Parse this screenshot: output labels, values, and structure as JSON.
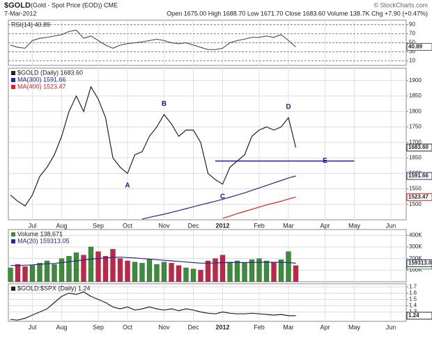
{
  "header": {
    "symbol": "$GOLD",
    "name": "(Gold - Spot Price (EOD)) CME",
    "date": "7-Mar-2012",
    "quote": "Open 1675.00 High 1688.70 Low 1671.70 Close 1683.60 Volume 138.7K Chg +7.90 (+0.47%)",
    "credit": "© StockCharts.com"
  },
  "chart_data": [
    {
      "type": "line",
      "title": "RSI(14) 40.89",
      "ylim": [
        0,
        100
      ],
      "yticks": [
        10,
        30,
        50,
        70,
        90
      ],
      "grid": true,
      "series": [
        {
          "color": "#555555",
          "values": [
            45,
            40,
            38,
            55,
            60,
            62,
            65,
            68,
            75,
            78,
            60,
            65,
            55,
            45,
            38,
            45,
            48,
            50,
            52,
            55,
            58,
            55,
            50,
            48,
            50,
            45,
            40,
            35,
            35,
            38,
            50,
            55,
            58,
            62,
            62,
            65,
            62,
            68,
            55,
            40.89
          ]
        }
      ]
    },
    {
      "type": "line",
      "ylim": [
        1450,
        1940
      ],
      "yticks": [
        1500,
        1550,
        1600,
        1650,
        1700,
        1750,
        1800,
        1850,
        1900
      ],
      "grid": true,
      "categories": [
        null,
        null,
        null,
        "Jul",
        null,
        null,
        null,
        "Aug",
        null,
        null,
        null,
        null,
        "Sep",
        null,
        null,
        null,
        "Oct",
        null,
        null,
        null,
        null,
        "Nov",
        null,
        null,
        null,
        "Dec",
        null,
        null,
        null,
        "2012",
        null,
        null,
        null,
        null,
        "Feb",
        null,
        null,
        null,
        "Mar",
        null,
        null,
        null,
        null,
        "Apr",
        null,
        null,
        null,
        "May",
        null,
        null,
        null,
        null,
        "Jun"
      ],
      "series": [
        {
          "name": "$GOLD (Daily) 1683.60",
          "color": "#222222",
          "values": [
            1530,
            1510,
            1495,
            1530,
            1590,
            1620,
            1660,
            1720,
            1800,
            1850,
            1800,
            1880,
            1840,
            1780,
            1650,
            1620,
            1600,
            1660,
            1670,
            1720,
            1750,
            1790,
            1760,
            1720,
            1740,
            1740,
            1700,
            1600,
            1580,
            1565,
            1620,
            1640,
            1660,
            1720,
            1740,
            1750,
            1740,
            1750,
            1780,
            1683.6,
            null,
            null,
            null,
            null,
            null,
            null,
            null,
            null,
            null,
            null,
            null,
            null,
            null
          ],
          "value_labels": [
            null,
            null,
            null,
            null,
            null,
            null,
            null,
            null,
            null,
            null,
            null,
            null,
            null,
            null,
            null,
            null,
            null,
            null,
            null,
            null,
            null,
            null,
            null,
            null,
            null,
            null,
            null,
            null,
            null,
            null,
            null,
            null,
            null,
            null,
            null,
            null,
            null,
            null,
            null,
            "1683.60",
            null,
            null,
            null,
            null,
            null,
            null,
            null,
            null,
            null,
            null,
            null,
            null,
            null
          ]
        },
        {
          "name": "MA(300) 1591.66",
          "color": "#1f2a8a",
          "values": [
            null,
            null,
            null,
            null,
            null,
            null,
            null,
            null,
            null,
            null,
            null,
            null,
            null,
            null,
            null,
            null,
            null,
            null,
            1452,
            1458,
            1463,
            1468,
            1474,
            1480,
            1486,
            1492,
            1498,
            1504,
            1510,
            1516,
            1523,
            1530,
            1537,
            1545,
            1553,
            1561,
            1569,
            1577,
            1585,
            1591.66,
            null,
            null,
            null,
            null,
            null,
            null,
            null,
            null,
            null,
            null,
            null,
            null,
            null
          ]
        },
        {
          "name": "MA(400) 1523.47",
          "color": "#e02020",
          "values": [
            null,
            null,
            null,
            null,
            null,
            null,
            null,
            null,
            null,
            null,
            null,
            null,
            null,
            null,
            null,
            null,
            null,
            null,
            null,
            null,
            null,
            null,
            null,
            null,
            null,
            null,
            null,
            null,
            null,
            1455,
            1462,
            1470,
            1477,
            1484,
            1491,
            1498,
            1504,
            1510,
            1517,
            1523.47,
            null,
            null,
            null,
            null,
            null,
            null,
            null,
            null,
            null,
            null,
            null,
            null,
            null
          ]
        }
      ],
      "hlines": [
        {
          "y": 1640,
          "x": [
            28,
            47
          ],
          "color": "#1a1aa8"
        }
      ],
      "annotations": [
        {
          "text": "A",
          "x": 16,
          "y": 1560
        },
        {
          "text": "B",
          "x": 21,
          "y": 1825
        },
        {
          "text": "C",
          "x": 29,
          "y": 1525
        },
        {
          "text": "D",
          "x": 38,
          "y": 1815
        },
        {
          "text": "E",
          "x": 43,
          "y": 1640
        }
      ]
    },
    {
      "type": "bar",
      "ylim": [
        0,
        450000
      ],
      "grid": true,
      "yticks": [
        {
          "value": 100000,
          "label": "100K"
        },
        {
          "value": 200000,
          "label": "200K"
        },
        {
          "value": 300000,
          "label": "300K"
        },
        {
          "value": 400000,
          "label": "400K"
        }
      ],
      "series": [
        {
          "name": "Volume 138,671",
          "values": [
            120000,
            150000,
            130000,
            140000,
            160000,
            180000,
            150000,
            200000,
            220000,
            250000,
            230000,
            300000,
            260000,
            220000,
            280000,
            200000,
            180000,
            170000,
            160000,
            190000,
            150000,
            170000,
            160000,
            140000,
            120000,
            110000,
            100000,
            180000,
            200000,
            230000,
            170000,
            180000,
            160000,
            190000,
            200000,
            180000,
            170000,
            190000,
            260000,
            138671
          ],
          "colors": [
            "#3c8c3c",
            "#c0254a",
            "#c0254a",
            "#3c8c3c",
            "#3c8c3c",
            "#3c8c3c",
            "#3c8c3c",
            "#3c8c3c",
            "#3c8c3c",
            "#3c8c3c",
            "#c0254a",
            "#3c8c3c",
            "#c0254a",
            "#c0254a",
            "#c0254a",
            "#c0254a",
            "#c0254a",
            "#3c8c3c",
            "#3c8c3c",
            "#3c8c3c",
            "#3c8c3c",
            "#3c8c3c",
            "#c0254a",
            "#c0254a",
            "#3c8c3c",
            "#3c8c3c",
            "#c0254a",
            "#c0254a",
            "#c0254a",
            "#c0254a",
            "#3c8c3c",
            "#3c8c3c",
            "#3c8c3c",
            "#3c8c3c",
            "#3c8c3c",
            "#3c8c3c",
            "#c0254a",
            "#3c8c3c",
            "#3c8c3c",
            "#c0254a"
          ]
        },
        {
          "name": "MA(20) 159313.05",
          "type": "line",
          "color": "#1f2a8a",
          "values": [
            140000,
            140000,
            142000,
            145000,
            150000,
            155000,
            158000,
            165000,
            172000,
            180000,
            188000,
            195000,
            200000,
            205000,
            210000,
            212000,
            208000,
            205000,
            200000,
            195000,
            190000,
            185000,
            180000,
            175000,
            170000,
            165000,
            160000,
            160000,
            162000,
            165000,
            165000,
            166000,
            165000,
            166000,
            167000,
            168000,
            167000,
            168000,
            165000,
            159313.05
          ]
        }
      ]
    },
    {
      "type": "line",
      "ylim": [
        1.15,
        1.75
      ],
      "yticks": [
        1.3,
        1.4,
        1.5,
        1.6,
        1.7
      ],
      "grid": true,
      "categories": [
        null,
        null,
        null,
        "Jul",
        null,
        null,
        null,
        "Aug",
        null,
        null,
        null,
        null,
        "Sep",
        null,
        null,
        null,
        "Oct",
        null,
        null,
        null,
        null,
        "Nov",
        null,
        null,
        null,
        "Dec",
        null,
        null,
        null,
        "2012",
        null,
        null,
        null,
        null,
        "Feb",
        null,
        null,
        null,
        "Mar",
        null,
        null,
        null,
        null,
        "Apr",
        null,
        null,
        null,
        "May",
        null,
        null,
        null,
        null,
        "Jun"
      ],
      "series": [
        {
          "name": "$GOLD:$SPX (Daily) 1.24",
          "color": "#222222",
          "values": [
            1.18,
            1.17,
            1.2,
            1.25,
            1.3,
            1.35,
            1.45,
            1.55,
            1.6,
            1.58,
            1.62,
            1.55,
            1.5,
            1.45,
            1.38,
            1.35,
            1.38,
            1.33,
            1.35,
            1.38,
            1.35,
            1.33,
            1.35,
            1.32,
            1.35,
            1.33,
            1.3,
            1.28,
            1.27,
            1.3,
            1.28,
            1.27,
            1.27,
            1.28,
            1.27,
            1.26,
            1.25,
            1.26,
            1.24,
            1.24,
            null,
            null,
            null,
            null,
            null,
            null,
            null,
            null,
            null,
            null,
            null,
            null,
            null
          ]
        }
      ]
    }
  ]
}
